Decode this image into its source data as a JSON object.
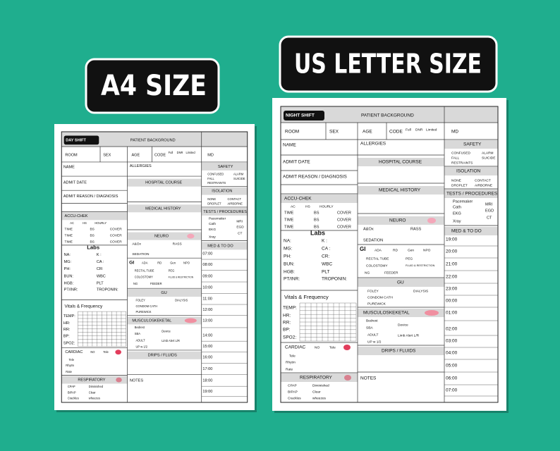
{
  "sheets": [
    {
      "badge": "A4  SIZE",
      "texts": [
        "DAY SHIFT",
        "PATIENT BACKGROUND",
        "ROOM",
        "SEX",
        "AGE",
        "CODE",
        "Full",
        "DNR",
        "Limited",
        "MD",
        "NAME",
        "ALLERGIES",
        "SAFETY",
        "CONFUSED",
        "ALARM",
        "FALL",
        "SUICIDE",
        "RESTRAINTS",
        "ADMIT DATE",
        "HOSPITAL COURSE",
        "ISOLATION",
        "NONE",
        "CONTACT",
        "DROPLET",
        "AIRBORNE",
        "ADMIT REASON / DIAGNOSIS",
        "MEDICAL HISTORY",
        "TESTS / PROCEDURES",
        "Pacemaker",
        "MRI",
        "Cath",
        "EGD",
        "EKG",
        "CT",
        "Xray",
        "ACCU-CHEK",
        "AC",
        "HS",
        "HOURLY",
        "TIME",
        "BS",
        "COVER",
        "TIME",
        "BS",
        "COVER",
        "TIME",
        "BS",
        "COVER",
        "NEURO",
        "A&Ox",
        "RASS",
        "MED & TO DO",
        "Labs",
        "NA:",
        "K :",
        "MG:",
        "CA :",
        "PH:",
        "CR:",
        "BUN:",
        "WBC",
        "HGB:",
        "PLT",
        "PT/INR:",
        "TROPONIN:",
        "SEDATION",
        "07:00",
        "08:00",
        "09:00",
        "10:00",
        "11:00",
        "12:00",
        "13:00",
        "14:00",
        "15:00",
        "16:00",
        "17:00",
        "18:00",
        "19:00",
        "GI",
        "ADA",
        "RD",
        "Gen",
        "NPO",
        "RECTAL TUBE",
        "PEG",
        "COLOSTOMY",
        "FLUID & RESTRICTION",
        "NG",
        "FEEDER",
        "GU",
        "FOLEY",
        "DIALYSIS",
        "CONDOM CATH",
        "PUREWICK",
        "Vitals & Frequency",
        "TEMP:",
        "HR:",
        "RR:",
        "BP:",
        "SPO2:",
        "MUSCULOSKEKETAL",
        "Bedrest",
        "Device",
        "SBA",
        "ADULT",
        "Limb Alert  L/R",
        "UP w  1/2",
        "CARDIAC",
        "NO",
        "Tele",
        "DRIPS / FLUIDS",
        "Tele",
        "Rhytm",
        "Rate",
        "RESPIRATORY",
        "NOTES",
        "CPAP",
        "Diminished",
        "BIPAP",
        "Clear",
        "Crackles",
        "wheezes"
      ]
    },
    {
      "badge": "US LETTER SIZE",
      "texts": [
        "NIGHT SHIFT",
        "PATIENT BACKGROUND",
        "ROOM",
        "SEX",
        "AGE",
        "CODE",
        "Full",
        "DNR",
        "Limited",
        "MD",
        "NAME",
        "ALLERGIES",
        "SAFETY",
        "CONFUSED",
        "ALARM",
        "FALL",
        "SUICIDE",
        "RESTRAINTS",
        "ADMIT DATE",
        "HOSPITAL COURSE",
        "ISOLATION",
        "NONE",
        "CONTACT",
        "DROPLET",
        "AIRBORNE",
        "ADMIT REASON / DIAGNOSIS",
        "MEDICAL HISTORY",
        "TESTS / PROCEDURES",
        "Pacemaker",
        "MRI",
        "Cath",
        "EGD",
        "EKG",
        "CT",
        "Xray",
        "ACCU-CHEK",
        "AC",
        "HS",
        "HOURLY",
        "TIME",
        "BS",
        "COVER",
        "TIME",
        "BS",
        "COVER",
        "TIME",
        "BS",
        "COVER",
        "NEURO",
        "A&Ox",
        "RASS",
        "MED & TO DO",
        "Labs",
        "NA:",
        "K :",
        "MG:",
        "CA :",
        "PH:",
        "CR:",
        "BUN:",
        "WBC",
        "HGB:",
        "PLT",
        "PT/INR:",
        "TROPONIN:",
        "SEDATION",
        "19:00",
        "20:00",
        "21:00",
        "22:00",
        "23:00",
        "00:00",
        "01:00",
        "02:00",
        "03:00",
        "04:00",
        "05:00",
        "06:00",
        "07:00",
        "GI",
        "ADA",
        "RD",
        "Gen",
        "NPO",
        "RECTAL TUBE",
        "PEG",
        "COLOSTOMY",
        "FLUID & RESTRICTION",
        "NG",
        "FEEDER",
        "GU",
        "FOLEY",
        "DIALYSIS",
        "CONDOM CATH",
        "PUREWICK",
        "Vitals & Frequency",
        "TEMP:",
        "HR:",
        "RR:",
        "BP:",
        "SPO2:",
        "MUSCULOSKEKETAL",
        "Bedrest",
        "Device",
        "SBA",
        "ADULT",
        "Limb Alert  L/R",
        "UP w  1/2",
        "CARDIAC",
        "NO",
        "Tele",
        "DRIPS / FLUIDS",
        "Tele",
        "Rhytm",
        "Rate",
        "RESPIRATORY",
        "NOTES",
        "CPAP",
        "Diminished",
        "BIPAP",
        "Clear",
        "Crackles",
        "wheezes"
      ]
    }
  ]
}
